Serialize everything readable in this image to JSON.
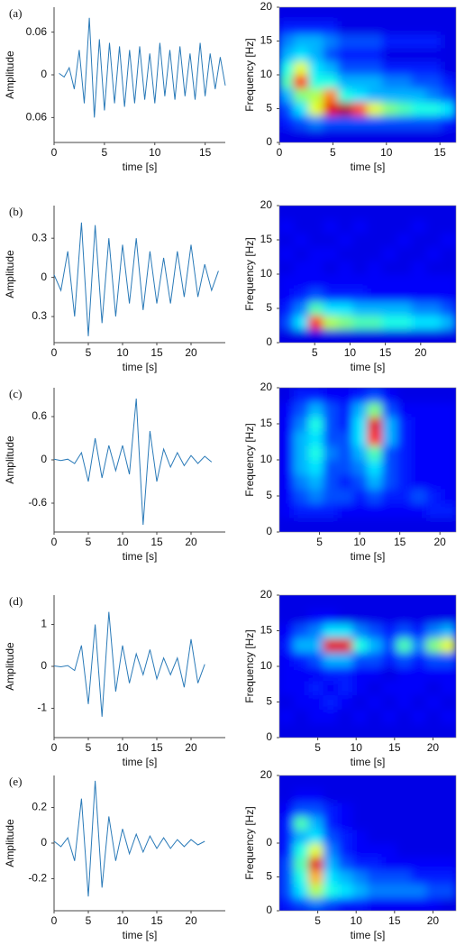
{
  "chart_data": [
    {
      "type": "line",
      "panel": "(a)",
      "xlabel": "time [s]",
      "ylabel": "Amplitude",
      "color": "#2a7ab8",
      "x": [
        0.5,
        1,
        1.5,
        2,
        2.5,
        3,
        3.5,
        4,
        4.5,
        5,
        5.5,
        6,
        6.5,
        7,
        7.5,
        8,
        8.5,
        9,
        9.5,
        10,
        10.5,
        11,
        11.5,
        12,
        12.5,
        13,
        13.5,
        14,
        14.5,
        15,
        15.5,
        16,
        16.5,
        17
      ],
      "values": [
        0.002,
        -0.003,
        0.01,
        -0.02,
        0.035,
        -0.04,
        0.08,
        -0.06,
        0.05,
        -0.05,
        0.045,
        -0.04,
        0.04,
        -0.045,
        0.035,
        -0.04,
        0.04,
        -0.035,
        0.03,
        -0.04,
        0.045,
        -0.03,
        0.035,
        -0.035,
        0.04,
        -0.03,
        0.03,
        -0.035,
        0.045,
        -0.03,
        0.03,
        -0.02,
        0.025,
        -0.015
      ],
      "xlim": [
        0,
        17
      ],
      "ylim": [
        -0.095,
        0.095
      ],
      "xticks": [
        0,
        5,
        10,
        15
      ],
      "yticks": [
        {
          "value": -0.06,
          "label": "0.06"
        },
        0,
        0.06
      ]
    },
    {
      "type": "heatmap",
      "xlabel": "time [s]",
      "ylabel": "Frequency [Hz]",
      "colormap": "jet",
      "xlim": [
        0,
        16.5
      ],
      "ylim": [
        0,
        20
      ],
      "xticks": [
        0,
        5,
        10,
        15
      ],
      "yticks": [
        0,
        5,
        10,
        15,
        20
      ],
      "z": [
        [
          0.1,
          0.1,
          0.1,
          0.1,
          0.1,
          0.1,
          0.1,
          0.1,
          0.1,
          0.1,
          0.1,
          0.1
        ],
        [
          0.15,
          0.2,
          0.25,
          0.2,
          0.2,
          0.2,
          0.2,
          0.2,
          0.2,
          0.2,
          0.2,
          0.15
        ],
        [
          0.2,
          0.35,
          0.6,
          0.9,
          0.95,
          0.8,
          0.6,
          0.5,
          0.45,
          0.4,
          0.4,
          0.35
        ],
        [
          0.3,
          0.5,
          0.55,
          0.75,
          0.4,
          0.35,
          0.3,
          0.3,
          0.3,
          0.3,
          0.25,
          0.2
        ],
        [
          0.45,
          0.85,
          0.4,
          0.4,
          0.3,
          0.3,
          0.3,
          0.25,
          0.25,
          0.2,
          0.2,
          0.15
        ],
        [
          0.4,
          0.6,
          0.35,
          0.3,
          0.2,
          0.2,
          0.2,
          0.15,
          0.15,
          0.15,
          0.15,
          0.1
        ],
        [
          0.3,
          0.35,
          0.3,
          0.2,
          0.15,
          0.15,
          0.15,
          0.1,
          0.1,
          0.1,
          0.1,
          0.1
        ],
        [
          0.25,
          0.3,
          0.3,
          0.25,
          0.2,
          0.2,
          0.2,
          0.15,
          0.15,
          0.15,
          0.15,
          0.1
        ],
        [
          0.15,
          0.15,
          0.15,
          0.15,
          0.1,
          0.1,
          0.1,
          0.1,
          0.1,
          0.1,
          0.1,
          0.1
        ],
        [
          0.1,
          0.1,
          0.1,
          0.1,
          0.1,
          0.1,
          0.1,
          0.1,
          0.1,
          0.1,
          0.1,
          0.1
        ]
      ]
    },
    {
      "type": "line",
      "panel": "(b)",
      "xlabel": "time [s]",
      "ylabel": "Amplitude",
      "color": "#2a7ab8",
      "x": [
        0,
        1,
        2,
        3,
        4,
        5,
        6,
        7,
        8,
        9,
        10,
        11,
        12,
        13,
        14,
        15,
        16,
        17,
        18,
        19,
        20,
        21,
        22,
        23,
        24
      ],
      "values": [
        0.02,
        -0.1,
        0.2,
        -0.3,
        0.42,
        -0.45,
        0.4,
        -0.35,
        0.3,
        -0.3,
        0.25,
        -0.2,
        0.3,
        -0.25,
        0.2,
        -0.2,
        0.15,
        -0.2,
        0.2,
        -0.15,
        0.25,
        -0.15,
        0.1,
        -0.1,
        0.05
      ],
      "xlim": [
        0,
        25
      ],
      "ylim": [
        -0.5,
        0.55
      ],
      "xticks": [
        0,
        5,
        10,
        15,
        20
      ],
      "yticks": [
        {
          "value": -0.3,
          "label": "0.3"
        },
        0,
        0.3
      ]
    },
    {
      "type": "heatmap",
      "xlabel": "time [s]",
      "ylabel": "Frequency [Hz]",
      "colormap": "jet",
      "xlim": [
        0,
        25
      ],
      "ylim": [
        0,
        20
      ],
      "xticks": [
        5,
        10,
        15,
        20
      ],
      "yticks": [
        0,
        5,
        10,
        15,
        20
      ],
      "z": [
        [
          0.1,
          0.1,
          0.1,
          0.1,
          0.1,
          0.1,
          0.1,
          0.1,
          0.1,
          0.1,
          0.1,
          0.1
        ],
        [
          0.2,
          0.35,
          0.85,
          0.55,
          0.5,
          0.45,
          0.45,
          0.4,
          0.4,
          0.35,
          0.35,
          0.3
        ],
        [
          0.15,
          0.25,
          0.45,
          0.35,
          0.35,
          0.3,
          0.3,
          0.3,
          0.3,
          0.25,
          0.25,
          0.2
        ],
        [
          0.12,
          0.15,
          0.2,
          0.15,
          0.15,
          0.15,
          0.12,
          0.12,
          0.12,
          0.12,
          0.12,
          0.12
        ],
        [
          0.12,
          0.12,
          0.12,
          0.12,
          0.12,
          0.12,
          0.12,
          0.12,
          0.12,
          0.12,
          0.12,
          0.12
        ],
        [
          0.1,
          0.12,
          0.12,
          0.1,
          0.12,
          0.1,
          0.12,
          0.1,
          0.1,
          0.12,
          0.1,
          0.1
        ],
        [
          0.12,
          0.1,
          0.12,
          0.12,
          0.1,
          0.1,
          0.1,
          0.12,
          0.1,
          0.1,
          0.12,
          0.1
        ],
        [
          0.1,
          0.12,
          0.1,
          0.1,
          0.12,
          0.1,
          0.1,
          0.1,
          0.12,
          0.1,
          0.1,
          0.12
        ],
        [
          0.12,
          0.1,
          0.1,
          0.12,
          0.1,
          0.12,
          0.1,
          0.1,
          0.1,
          0.12,
          0.1,
          0.1
        ],
        [
          0.1,
          0.1,
          0.1,
          0.1,
          0.1,
          0.1,
          0.1,
          0.1,
          0.1,
          0.1,
          0.1,
          0.1
        ]
      ]
    },
    {
      "type": "line",
      "panel": "(c)",
      "xlabel": "time [s]",
      "ylabel": "Amplitude",
      "color": "#2a7ab8",
      "x": [
        0,
        1,
        2,
        3,
        4,
        5,
        6,
        7,
        8,
        9,
        10,
        11,
        12,
        13,
        14,
        15,
        16,
        17,
        18,
        19,
        20,
        21,
        22,
        23
      ],
      "values": [
        0.01,
        -0.01,
        0.01,
        -0.05,
        0.1,
        -0.3,
        0.3,
        -0.25,
        0.2,
        -0.15,
        0.2,
        -0.2,
        0.85,
        -0.9,
        0.4,
        -0.3,
        0.15,
        -0.1,
        0.1,
        -0.08,
        0.06,
        -0.05,
        0.05,
        -0.03
      ],
      "xlim": [
        0,
        25
      ],
      "ylim": [
        -1,
        1
      ],
      "xticks": [
        0,
        5,
        10,
        15,
        20
      ],
      "yticks": [
        -0.6,
        0,
        0.6
      ]
    },
    {
      "type": "heatmap",
      "xlabel": "time [s]",
      "ylabel": "Frequency [Hz]",
      "colormap": "jet",
      "xlim": [
        0,
        22
      ],
      "ylim": [
        0,
        20
      ],
      "xticks": [
        5,
        10,
        15,
        20
      ],
      "yticks": [
        0,
        5,
        10,
        15,
        20
      ],
      "z": [
        [
          0.1,
          0.1,
          0.1,
          0.1,
          0.1,
          0.1,
          0.1,
          0.1,
          0.1,
          0.1,
          0.1,
          0.1
        ],
        [
          0.12,
          0.15,
          0.15,
          0.15,
          0.12,
          0.12,
          0.12,
          0.12,
          0.12,
          0.12,
          0.15,
          0.15
        ],
        [
          0.12,
          0.2,
          0.25,
          0.2,
          0.2,
          0.15,
          0.2,
          0.15,
          0.15,
          0.2,
          0.15,
          0.12
        ],
        [
          0.12,
          0.25,
          0.3,
          0.2,
          0.15,
          0.2,
          0.3,
          0.2,
          0.15,
          0.12,
          0.12,
          0.12
        ],
        [
          0.12,
          0.3,
          0.35,
          0.2,
          0.2,
          0.25,
          0.35,
          0.2,
          0.15,
          0.12,
          0.12,
          0.12
        ],
        [
          0.12,
          0.3,
          0.4,
          0.25,
          0.2,
          0.3,
          0.45,
          0.2,
          0.15,
          0.12,
          0.12,
          0.12
        ],
        [
          0.12,
          0.3,
          0.35,
          0.2,
          0.2,
          0.35,
          0.85,
          0.3,
          0.15,
          0.12,
          0.12,
          0.12
        ],
        [
          0.12,
          0.25,
          0.4,
          0.2,
          0.15,
          0.35,
          0.9,
          0.3,
          0.15,
          0.12,
          0.12,
          0.12
        ],
        [
          0.12,
          0.2,
          0.3,
          0.2,
          0.15,
          0.3,
          0.5,
          0.2,
          0.12,
          0.12,
          0.12,
          0.12
        ],
        [
          0.1,
          0.15,
          0.15,
          0.12,
          0.12,
          0.15,
          0.2,
          0.12,
          0.1,
          0.1,
          0.1,
          0.1
        ]
      ]
    },
    {
      "type": "line",
      "panel": "(d)",
      "xlabel": "time [s]",
      "ylabel": "Amplitude",
      "color": "#2a7ab8",
      "x": [
        0,
        1,
        2,
        3,
        4,
        5,
        6,
        7,
        8,
        9,
        10,
        11,
        12,
        13,
        14,
        15,
        16,
        17,
        18,
        19,
        20,
        21,
        22
      ],
      "values": [
        0.01,
        -0.01,
        0.02,
        -0.1,
        0.5,
        -0.9,
        1.0,
        -1.2,
        1.3,
        -0.6,
        0.5,
        -0.4,
        0.3,
        -0.2,
        0.4,
        -0.3,
        0.2,
        -0.2,
        0.2,
        -0.5,
        0.65,
        -0.4,
        0.05
      ],
      "xlim": [
        0,
        25
      ],
      "ylim": [
        -1.7,
        1.7
      ],
      "xticks": [
        0,
        5,
        10,
        15,
        20
      ],
      "yticks": [
        -1,
        0,
        1
      ]
    },
    {
      "type": "heatmap",
      "xlabel": "time [s]",
      "ylabel": "Frequency [Hz]",
      "colormap": "jet",
      "xlim": [
        0,
        23
      ],
      "ylim": [
        0,
        20
      ],
      "xticks": [
        5,
        10,
        15,
        20
      ],
      "yticks": [
        0,
        5,
        10,
        15,
        20
      ],
      "z": [
        [
          0.1,
          0.1,
          0.1,
          0.1,
          0.1,
          0.1,
          0.1,
          0.1,
          0.1,
          0.1,
          0.1,
          0.1
        ],
        [
          0.12,
          0.1,
          0.12,
          0.12,
          0.1,
          0.12,
          0.1,
          0.12,
          0.1,
          0.12,
          0.1,
          0.12
        ],
        [
          0.1,
          0.12,
          0.12,
          0.15,
          0.12,
          0.1,
          0.12,
          0.1,
          0.12,
          0.1,
          0.12,
          0.1
        ],
        [
          0.12,
          0.12,
          0.15,
          0.12,
          0.15,
          0.12,
          0.1,
          0.12,
          0.12,
          0.12,
          0.1,
          0.12
        ],
        [
          0.12,
          0.12,
          0.12,
          0.15,
          0.15,
          0.12,
          0.12,
          0.1,
          0.12,
          0.12,
          0.12,
          0.12
        ],
        [
          0.12,
          0.15,
          0.2,
          0.3,
          0.3,
          0.2,
          0.2,
          0.15,
          0.2,
          0.15,
          0.2,
          0.2
        ],
        [
          0.15,
          0.3,
          0.3,
          0.9,
          0.9,
          0.4,
          0.3,
          0.2,
          0.45,
          0.25,
          0.5,
          0.6
        ],
        [
          0.12,
          0.2,
          0.25,
          0.35,
          0.35,
          0.25,
          0.2,
          0.15,
          0.2,
          0.15,
          0.25,
          0.3
        ],
        [
          0.1,
          0.1,
          0.12,
          0.12,
          0.1,
          0.1,
          0.1,
          0.1,
          0.1,
          0.1,
          0.1,
          0.1
        ],
        [
          0.1,
          0.1,
          0.1,
          0.1,
          0.1,
          0.1,
          0.1,
          0.1,
          0.1,
          0.1,
          0.1,
          0.1
        ]
      ]
    },
    {
      "type": "line",
      "panel": "(e)",
      "xlabel": "time [s]",
      "ylabel": "Amplitude",
      "color": "#2a7ab8",
      "x": [
        0,
        1,
        2,
        3,
        4,
        5,
        6,
        7,
        8,
        9,
        10,
        11,
        12,
        13,
        14,
        15,
        16,
        17,
        18,
        19,
        20,
        21,
        22
      ],
      "values": [
        0.01,
        -0.02,
        0.03,
        -0.1,
        0.25,
        -0.3,
        0.35,
        -0.25,
        0.15,
        -0.1,
        0.08,
        -0.06,
        0.05,
        -0.05,
        0.04,
        -0.03,
        0.03,
        -0.03,
        0.02,
        -0.02,
        0.02,
        -0.01,
        0.01
      ],
      "xlim": [
        0,
        25
      ],
      "ylim": [
        -0.38,
        0.38
      ],
      "xticks": [
        0,
        5,
        10,
        15,
        20
      ],
      "yticks": [
        -0.2,
        0,
        0.2
      ]
    },
    {
      "type": "heatmap",
      "xlabel": "time [s]",
      "ylabel": "Frequency [Hz]",
      "colormap": "jet",
      "xlim": [
        0,
        23
      ],
      "ylim": [
        0,
        20
      ],
      "xticks": [
        5,
        10,
        15,
        20
      ],
      "yticks": [
        0,
        5,
        {
          "value": 10,
          "label": "0"
        },
        20
      ],
      "z": [
        [
          0.15,
          0.2,
          0.25,
          0.2,
          0.15,
          0.15,
          0.12,
          0.12,
          0.12,
          0.12,
          0.12,
          0.1
        ],
        [
          0.2,
          0.35,
          0.55,
          0.4,
          0.35,
          0.3,
          0.25,
          0.25,
          0.25,
          0.25,
          0.2,
          0.2
        ],
        [
          0.2,
          0.4,
          0.7,
          0.35,
          0.3,
          0.25,
          0.2,
          0.2,
          0.2,
          0.15,
          0.15,
          0.15
        ],
        [
          0.2,
          0.45,
          0.9,
          0.3,
          0.2,
          0.15,
          0.15,
          0.12,
          0.12,
          0.12,
          0.12,
          0.12
        ],
        [
          0.15,
          0.4,
          0.6,
          0.25,
          0.15,
          0.12,
          0.12,
          0.12,
          0.1,
          0.1,
          0.1,
          0.1
        ],
        [
          0.15,
          0.3,
          0.35,
          0.2,
          0.15,
          0.12,
          0.1,
          0.1,
          0.1,
          0.1,
          0.1,
          0.1
        ],
        [
          0.15,
          0.45,
          0.3,
          0.15,
          0.12,
          0.1,
          0.1,
          0.1,
          0.1,
          0.1,
          0.1,
          0.1
        ],
        [
          0.12,
          0.2,
          0.2,
          0.15,
          0.12,
          0.1,
          0.1,
          0.1,
          0.1,
          0.1,
          0.1,
          0.1
        ],
        [
          0.1,
          0.12,
          0.12,
          0.1,
          0.1,
          0.1,
          0.1,
          0.1,
          0.1,
          0.1,
          0.1,
          0.1
        ],
        [
          0.1,
          0.1,
          0.1,
          0.1,
          0.1,
          0.1,
          0.1,
          0.1,
          0.1,
          0.1,
          0.1,
          0.1
        ]
      ]
    }
  ]
}
